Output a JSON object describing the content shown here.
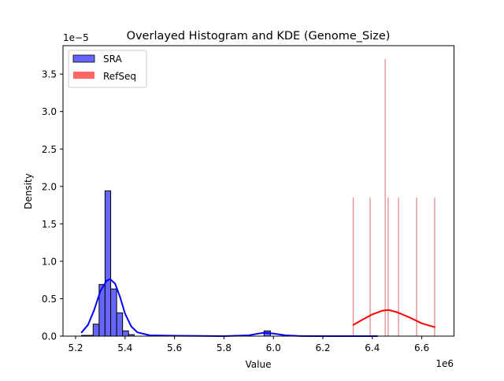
{
  "chart_data": {
    "type": "bar",
    "title": "Overlayed Histogram and KDE (Genome_Size)",
    "xlabel": "Value",
    "ylabel": "Density",
    "x_offset_label": "1e6",
    "y_offset_label": "1e−5",
    "xlim": [
      5.15,
      6.72
    ],
    "ylim": [
      0,
      3.9
    ],
    "xticks": [
      5.2,
      5.4,
      5.6,
      5.8,
      6.0,
      6.2,
      6.4,
      6.6
    ],
    "xtick_labels": [
      "5.2",
      "5.4",
      "5.6",
      "5.8",
      "6.0",
      "6.2",
      "6.4",
      "6.6"
    ],
    "yticks": [
      0,
      0.5,
      1.0,
      1.5,
      2.0,
      2.5,
      3.0,
      3.5
    ],
    "ytick_labels": [
      "0.0",
      "0.5",
      "1.0",
      "1.5",
      "2.0",
      "2.5",
      "3.0",
      "3.5"
    ],
    "grid": false,
    "legend_position": "top-left",
    "series": [
      {
        "name": "SRA",
        "color": "#6666ff",
        "kde_color": "#0000ff",
        "bins": [
          {
            "x0": 5.224,
            "x1": 5.248,
            "value": 0.01
          },
          {
            "x0": 5.248,
            "x1": 5.271,
            "value": 0.01
          },
          {
            "x0": 5.271,
            "x1": 5.295,
            "value": 0.16
          },
          {
            "x0": 5.295,
            "x1": 5.319,
            "value": 0.69
          },
          {
            "x0": 5.319,
            "x1": 5.342,
            "value": 1.94
          },
          {
            "x0": 5.342,
            "x1": 5.366,
            "value": 0.63
          },
          {
            "x0": 5.366,
            "x1": 5.39,
            "value": 0.31
          },
          {
            "x0": 5.39,
            "x1": 5.414,
            "value": 0.07
          },
          {
            "x0": 5.414,
            "x1": 5.437,
            "value": 0.02
          },
          {
            "x0": 5.58,
            "x1": 5.604,
            "value": 0.01
          },
          {
            "x0": 5.962,
            "x1": 5.988,
            "value": 0.07
          }
        ],
        "kde": {
          "x": [
            5.225,
            5.25,
            5.275,
            5.3,
            5.325,
            5.34,
            5.36,
            5.38,
            5.4,
            5.425,
            5.45,
            5.5,
            5.6,
            5.8,
            5.9,
            5.95,
            5.97,
            6.0,
            6.05,
            6.1,
            6.2,
            6.42
          ],
          "y": [
            0.05,
            0.15,
            0.35,
            0.6,
            0.74,
            0.76,
            0.7,
            0.52,
            0.3,
            0.13,
            0.05,
            0.01,
            0.005,
            0.0,
            0.01,
            0.04,
            0.045,
            0.035,
            0.01,
            0.002,
            0.0,
            0.0
          ]
        }
      },
      {
        "name": "RefSeq",
        "color": "#ff6666",
        "kde_color": "#ff0000",
        "bins": [
          {
            "x0": 6.321,
            "x1": 6.325,
            "value": 1.85
          },
          {
            "x0": 6.389,
            "x1": 6.393,
            "value": 1.85
          },
          {
            "x0": 6.45,
            "x1": 6.454,
            "value": 3.7
          },
          {
            "x0": 6.462,
            "x1": 6.466,
            "value": 1.85
          },
          {
            "x0": 6.504,
            "x1": 6.508,
            "value": 1.85
          },
          {
            "x0": 6.577,
            "x1": 6.581,
            "value": 1.85
          },
          {
            "x0": 6.65,
            "x1": 6.654,
            "value": 1.85
          }
        ],
        "kde": {
          "x": [
            6.323,
            6.36,
            6.4,
            6.44,
            6.465,
            6.5,
            6.55,
            6.6,
            6.652
          ],
          "y": [
            0.15,
            0.22,
            0.29,
            0.34,
            0.35,
            0.32,
            0.25,
            0.17,
            0.12
          ]
        }
      }
    ]
  }
}
